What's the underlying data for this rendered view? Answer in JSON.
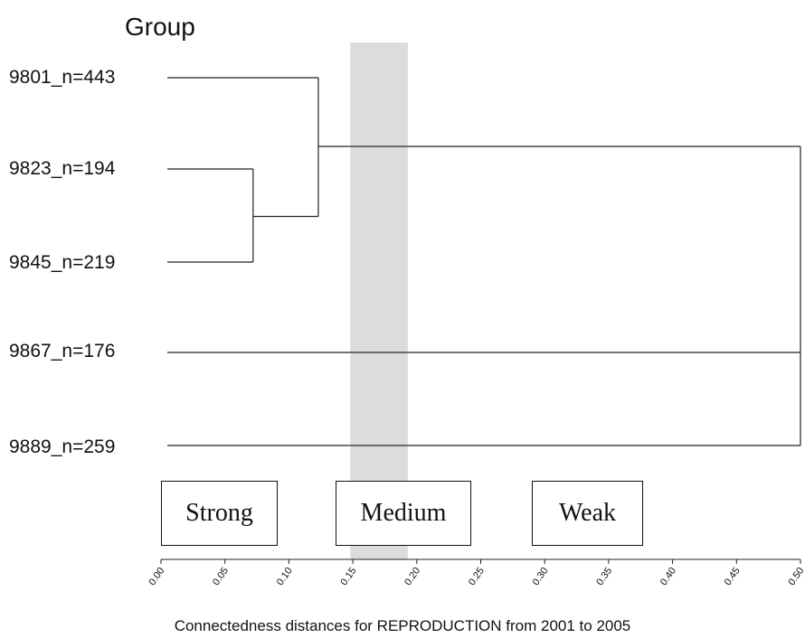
{
  "title": "Group",
  "leaves": [
    {
      "label": "9801_n=443"
    },
    {
      "label": "9823_n=194"
    },
    {
      "label": "9845_n=219"
    },
    {
      "label": "9867_n=176"
    },
    {
      "label": "9889_n=259"
    }
  ],
  "chart_data": {
    "type": "dendrogram",
    "xlabel": "Connectedness distances for REPRODUCTION from 2001 to 2005",
    "xlim": [
      0.0,
      0.5
    ],
    "x_ticks": [
      "0.00",
      "0.05",
      "0.10",
      "0.15",
      "0.20",
      "0.25",
      "0.30",
      "0.35",
      "0.40",
      "0.45",
      "0.50"
    ],
    "merges": [
      {
        "members": [
          "9823_n=194",
          "9845_n=219"
        ],
        "distance": 0.072
      },
      {
        "members": [
          "9801_n=443",
          "9823_n=194 + 9845_n=219"
        ],
        "distance": 0.123
      },
      {
        "members": [
          "cluster 9801/9823/9845",
          "9867_n=176",
          "9889_n=259"
        ],
        "distance": 0.5
      }
    ],
    "highlight_band": [
      0.148,
      0.193
    ],
    "band_color": "#dcdcdc",
    "categories_boxes": [
      "Strong",
      "Medium",
      "Weak"
    ]
  }
}
